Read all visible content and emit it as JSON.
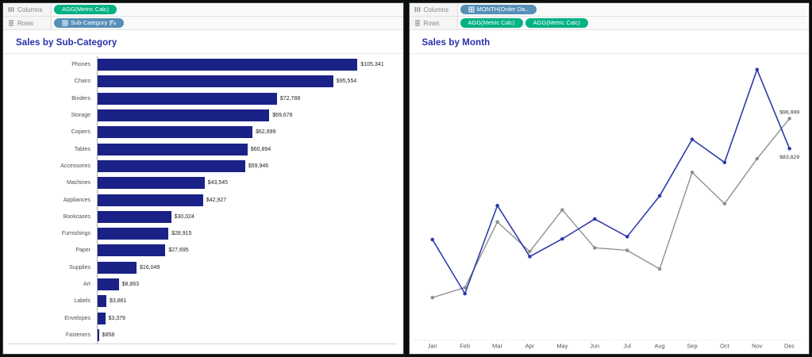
{
  "colors": {
    "title_accent": "#2531a8",
    "bar": "#1a2187",
    "line_primary": "#2c39a8",
    "line_secondary": "#8f8f8f",
    "pill_measure_green": "#00b183",
    "pill_dimension_blue": "#568fb8"
  },
  "left_panel": {
    "title": "Sales by Sub-Category",
    "shelves": {
      "columns_label": "Columns",
      "rows_label": "Rows",
      "columns_pills": [
        {
          "label": "AGG(Metric Calc)",
          "kind": "measure",
          "left_icon": null,
          "right_icon": null
        }
      ],
      "rows_pills": [
        {
          "label": "Sub-Category",
          "kind": "dimension",
          "left_icon": "grid-icon",
          "right_icon": "sort-icon"
        }
      ]
    },
    "chart_data": {
      "type": "bar",
      "orientation": "horizontal",
      "title": "Sales by Sub-Category",
      "categories": [
        "Phones",
        "Chairs",
        "Binders",
        "Storage",
        "Copiers",
        "Tables",
        "Accessories",
        "Machines",
        "Appliances",
        "Bookcases",
        "Furnishings",
        "Paper",
        "Supplies",
        "Art",
        "Labels",
        "Envelopes",
        "Fasteners"
      ],
      "values": [
        105341,
        95554,
        72788,
        69678,
        62899,
        60894,
        59946,
        43545,
        42927,
        30024,
        28915,
        27695,
        16049,
        8863,
        3861,
        3379,
        858
      ],
      "value_labels": [
        "$105,341",
        "$95,554",
        "$72,788",
        "$69,678",
        "$62,899",
        "$60,894",
        "$59,946",
        "$43,545",
        "$42,927",
        "$30,024",
        "$28,915",
        "$27,695",
        "$16,049",
        "$8,863",
        "$3,861",
        "$3,379",
        "$858"
      ],
      "xlim": [
        0,
        110000
      ],
      "bar_color": "#1a2187",
      "grid": false
    }
  },
  "right_panel": {
    "title": "Sales by Month",
    "shelves": {
      "columns_label": "Columns",
      "rows_label": "Rows",
      "columns_pills": [
        {
          "label": "MONTH(Order Da..",
          "kind": "dimension",
          "left_icon": "grid-icon",
          "right_icon": null
        }
      ],
      "rows_pills": [
        {
          "label": "AGG(Metric Calc)",
          "kind": "measure",
          "left_icon": null,
          "right_icon": null
        },
        {
          "label": "AGG(Metric Calc)",
          "kind": "measure",
          "left_icon": null,
          "right_icon": null
        }
      ]
    },
    "chart_data": {
      "type": "line",
      "title": "Sales by Month",
      "x": [
        "Jan",
        "Feb",
        "Mar",
        "Apr",
        "May",
        "Jun",
        "Jul",
        "Aug",
        "Sep",
        "Oct",
        "Nov",
        "Dec"
      ],
      "series": [
        {
          "name": "AGG(Metric Calc)",
          "color": "#2c39a8",
          "values": [
            43971,
            20301,
            58872,
            36522,
            44261,
            52982,
            45264,
            63121,
            87867,
            77777,
            118448,
            83829
          ],
          "end_label": "$83,829"
        },
        {
          "name": "AGG(Metric Calc)",
          "color": "#8f8f8f",
          "values": [
            18542,
            22979,
            51716,
            38750,
            56988,
            40344,
            39262,
            31115,
            73410,
            59687,
            79412,
            96999
          ],
          "end_label": "$96,999"
        }
      ],
      "ylim": [
        0,
        125300
      ],
      "grid": false,
      "x_axis_line": "dotted",
      "legend": "none"
    }
  }
}
